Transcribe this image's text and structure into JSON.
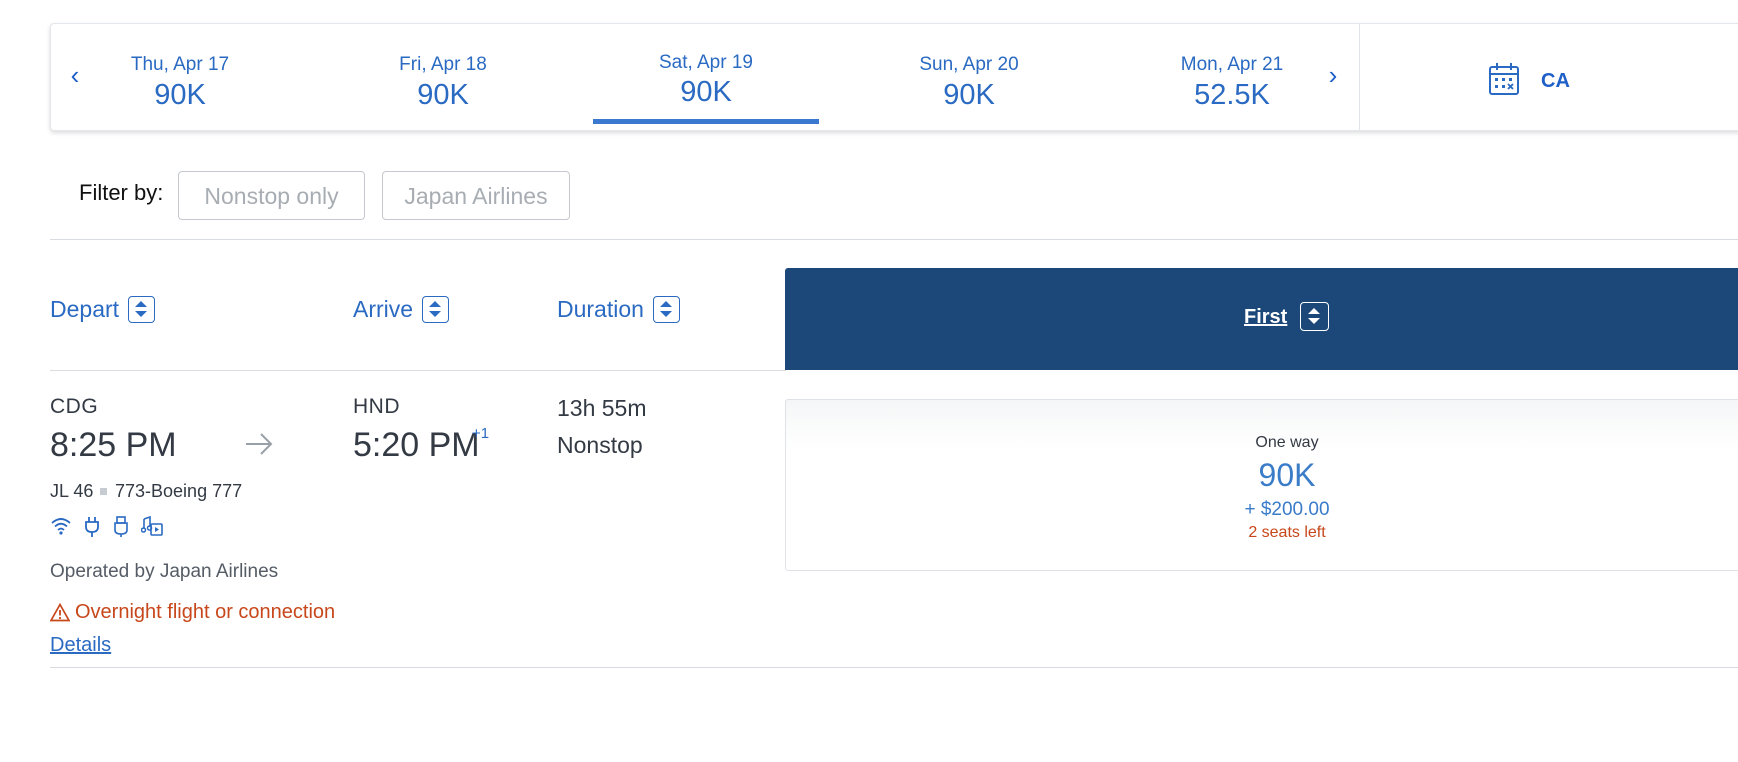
{
  "date_strip": {
    "prev_glyph": "‹",
    "next_glyph": "›",
    "dates": [
      {
        "label": "Thu, Apr 17",
        "price": "90K",
        "selected": false
      },
      {
        "label": "Fri, Apr 18",
        "price": "90K",
        "selected": false
      },
      {
        "label": "Sat, Apr 19",
        "price": "90K",
        "selected": true
      },
      {
        "label": "Sun, Apr 20",
        "price": "90K",
        "selected": false
      },
      {
        "label": "Mon, Apr 21",
        "price": "52.5K",
        "selected": false
      }
    ],
    "calendar_text": "CA",
    "calendar_icon": "calendar-icon"
  },
  "filters": {
    "label": "Filter by:",
    "nonstop": "Nonstop only",
    "airline": "Japan Airlines"
  },
  "columns": {
    "depart": "Depart",
    "arrive": "Arrive",
    "duration": "Duration",
    "cabin": "First"
  },
  "flight": {
    "origin": "CDG",
    "depart_time": "8:25 PM",
    "destination": "HND",
    "arrive_time": "5:20 PM",
    "day_offset": "+1",
    "flight_number": "JL 46",
    "aircraft": "773-Boeing 777",
    "amenities": [
      "wifi-icon",
      "power-plug-icon",
      "usb-icon",
      "entertainment-icon"
    ],
    "operated_by": "Operated by Japan Airlines",
    "warning": "Overnight flight or connection",
    "details": "Details",
    "duration": "13h 55m",
    "stops": "Nonstop"
  },
  "fare": {
    "trip_type": "One way",
    "miles": "90K",
    "taxes": "+ $200.00",
    "seats_left": "2 seats left"
  },
  "colors": {
    "accent_blue": "#2a6ac2",
    "cabin_header": "#1b4879",
    "warning_orange": "#c7471b"
  }
}
